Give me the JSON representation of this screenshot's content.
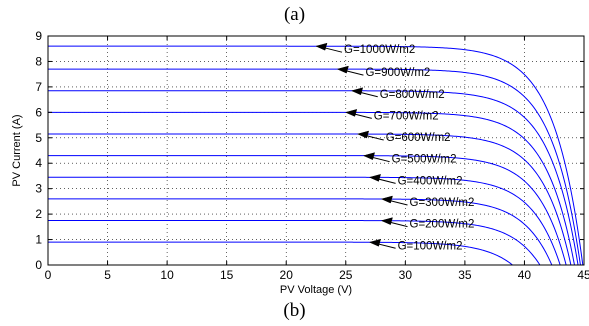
{
  "figure": {
    "top_label": "(a)",
    "bottom_label": "(b)"
  },
  "chart_data": {
    "type": "line",
    "title": "",
    "xlabel": "PV Voltage (V)",
    "ylabel": "PV Current (A)",
    "xlim": [
      0,
      45
    ],
    "ylim": [
      0,
      9
    ],
    "xticks": [
      0,
      5,
      10,
      15,
      20,
      25,
      30,
      35,
      40,
      45
    ],
    "yticks": [
      0,
      1,
      2,
      3,
      4,
      5,
      6,
      7,
      8,
      9
    ],
    "grid": true,
    "line_color": "#0000ff",
    "series": [
      {
        "label": "G=1000W/m2",
        "isc": 8.6,
        "voc": 44.9,
        "arrow_x": 22.5
      },
      {
        "label": "G=900W/m2",
        "isc": 7.7,
        "voc": 44.7,
        "arrow_x": 24.3
      },
      {
        "label": "G=800W/m2",
        "isc": 6.85,
        "voc": 44.5,
        "arrow_x": 25.5
      },
      {
        "label": "G=700W/m2",
        "isc": 6.0,
        "voc": 44.2,
        "arrow_x": 25.0
      },
      {
        "label": "G=600W/m2",
        "isc": 5.15,
        "voc": 43.9,
        "arrow_x": 26.0
      },
      {
        "label": "G=500W/m2",
        "isc": 4.3,
        "voc": 43.5,
        "arrow_x": 26.5
      },
      {
        "label": "G=400W/m2",
        "isc": 3.45,
        "voc": 43.0,
        "arrow_x": 27.0
      },
      {
        "label": "G=300W/m2",
        "isc": 2.6,
        "voc": 42.3,
        "arrow_x": 28.0
      },
      {
        "label": "G=200W/m2",
        "isc": 1.75,
        "voc": 41.3,
        "arrow_x": 28.0
      },
      {
        "label": "G=100W/m2",
        "isc": 0.9,
        "voc": 39.0,
        "arrow_x": 27.0
      }
    ]
  }
}
